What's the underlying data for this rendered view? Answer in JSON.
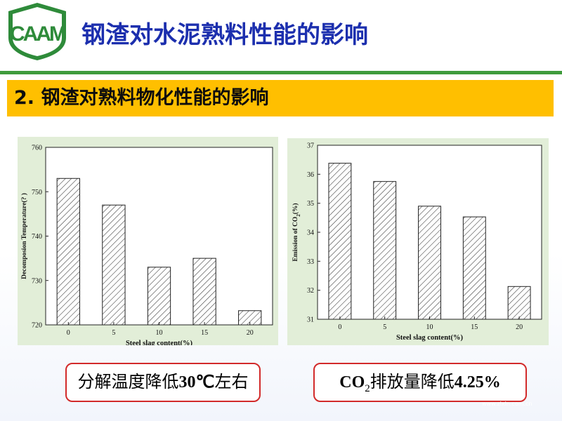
{
  "header": {
    "title": "钢渣对水泥熟料性能的影响",
    "colors": {
      "title": "#1c2fae",
      "rule": "#3f9b3c",
      "logo_green": "#2e8b3a"
    }
  },
  "logo": {
    "icon": "institution-logo-icon",
    "text": "CAAM"
  },
  "section": {
    "title": "2. 钢渣对熟料物化性能的影响",
    "background": "#ffbf00"
  },
  "chart_data": [
    {
      "type": "bar",
      "categories": [
        "0",
        "5",
        "10",
        "15",
        "20"
      ],
      "values": [
        753,
        747,
        733,
        735,
        723.2
      ],
      "xlabel": "Steel slag content(%)",
      "ylabel": "Decomposion Temperature(? )",
      "ylim": [
        720,
        760
      ],
      "yticks": [
        "720",
        "730",
        "740",
        "750",
        "760"
      ],
      "grid": false,
      "fill": "diagonal-hatch"
    },
    {
      "type": "bar",
      "categories": [
        "0",
        "5",
        "10",
        "15",
        "20"
      ],
      "values": [
        36.38,
        35.75,
        34.9,
        34.53,
        32.13
      ],
      "xlabel": "Steel slag content(%)",
      "ylabel_main": "Emission of CO",
      "ylabel_sub": "2",
      "ylabel_end": "(%)",
      "ylim": [
        31,
        37
      ],
      "yticks": [
        "31",
        "32",
        "33",
        "34",
        "35",
        "36",
        "37"
      ],
      "grid": false,
      "fill": "diagonal-hatch"
    }
  ],
  "callouts": {
    "left": {
      "text_a": "分解温度降低",
      "text_b": "30℃",
      "text_c": "左右"
    },
    "right": {
      "text_a": "CO",
      "sub": "2",
      "text_b": "排放量降低",
      "text_c": "4.25%"
    }
  },
  "watermark": {
    "text": "www.zixin.com.cn"
  }
}
